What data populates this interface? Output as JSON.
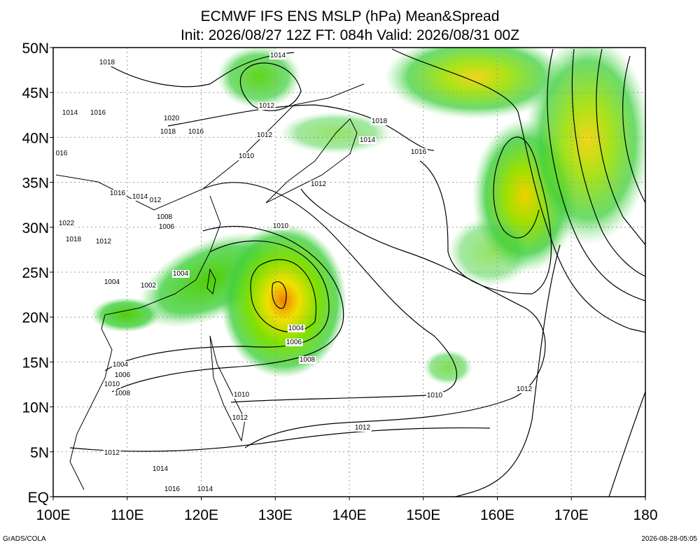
{
  "header": {
    "title": "ECMWF IFS ENS MSLP (hPa) Mean&Spread",
    "subtitle": "Init: 2026/08/27 12Z  FT: 084h  Valid: 2026/08/31 00Z"
  },
  "axes": {
    "x_ticks": [
      "100E",
      "110E",
      "120E",
      "130E",
      "140E",
      "150E",
      "160E",
      "170E",
      "180"
    ],
    "y_ticks": [
      "EQ",
      "5N",
      "10N",
      "15N",
      "20N",
      "25N",
      "30N",
      "35N",
      "40N",
      "45N",
      "50N"
    ]
  },
  "contour_labels": [
    "1014",
    "1018",
    "1012",
    "1014",
    "1016",
    "1020",
    "1018",
    "1016",
    "1012",
    "1018",
    "1014",
    "1016",
    "016",
    "1010",
    "1012",
    "1016",
    "1014",
    "012",
    "1008",
    "1006",
    "1010",
    "1022",
    "1018",
    "1012",
    "1004",
    "1004",
    "1002",
    "1004",
    "1006",
    "1008",
    "1004",
    "1006",
    "1010",
    "1008",
    "1010",
    "1010",
    "1012",
    "1012",
    "1012",
    "1012",
    "1014",
    "1016",
    "1014"
  ],
  "footer": {
    "left": "GrADS/COLA",
    "right": "2026-08-28-05:05"
  }
}
